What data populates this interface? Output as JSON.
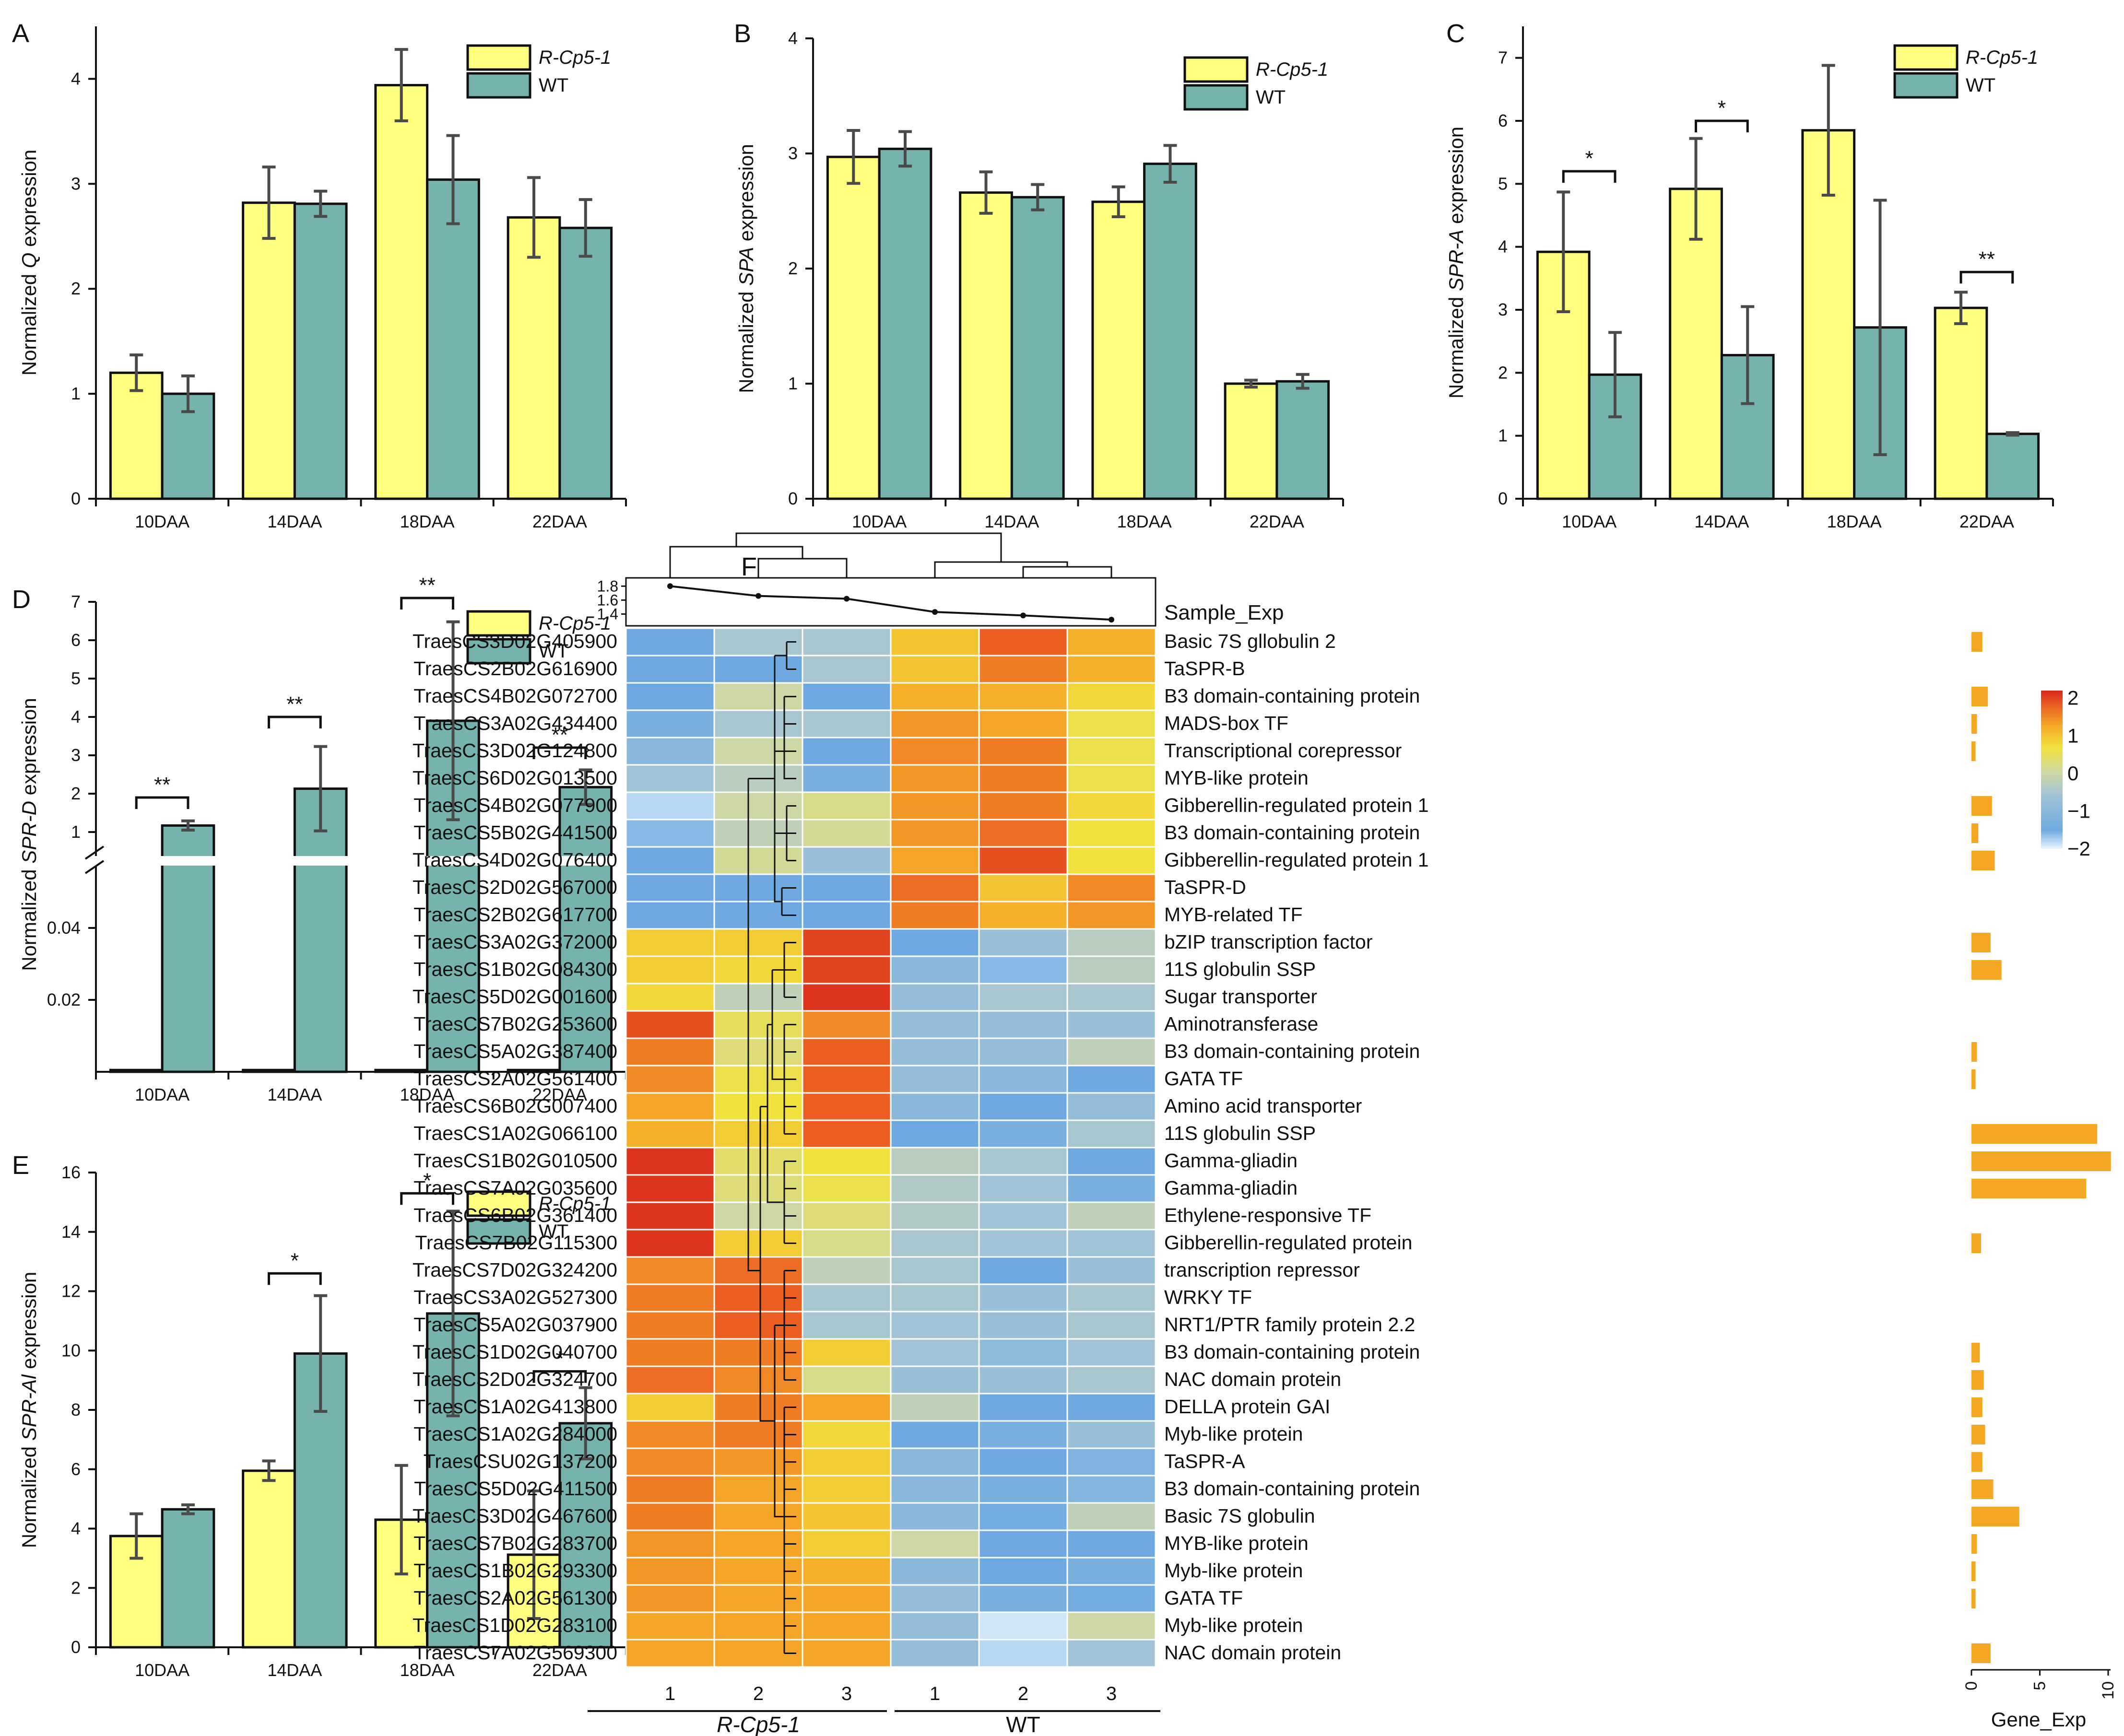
{
  "colors": {
    "rcp": "#ffff80",
    "wt": "#76b2ae",
    "bar_gene": "#f5a623",
    "ink": "#111111",
    "err": "#4a4a4a"
  },
  "chart_data": [
    {
      "type": "bar",
      "panel": "A",
      "title": "",
      "categories": [
        "10DAA",
        "14DAA",
        "18DAA",
        "22DAA"
      ],
      "series": [
        {
          "name": "R-Cp5-1",
          "values": [
            1.2,
            2.82,
            3.94,
            2.68
          ],
          "errors": [
            0.17,
            0.34,
            0.34,
            0.38
          ]
        },
        {
          "name": "WT",
          "values": [
            1.0,
            2.81,
            3.04,
            2.58
          ],
          "errors": [
            0.17,
            0.12,
            0.42,
            0.27
          ]
        }
      ],
      "ylabel_pre": "Normalized ",
      "ylabel_it": "Q",
      "ylabel_post": " expression",
      "ylim": [
        0,
        4.5
      ],
      "yticks": [
        "0",
        "1",
        "2",
        "3",
        "4"
      ],
      "legend": "top-right",
      "sig": []
    },
    {
      "type": "bar",
      "panel": "B",
      "title": "",
      "categories": [
        "10DAA",
        "14DAA",
        "18DAA",
        "22DAA"
      ],
      "series": [
        {
          "name": "R-Cp5-1",
          "values": [
            2.97,
            2.66,
            2.58,
            1.0
          ],
          "errors": [
            0.23,
            0.18,
            0.13,
            0.03
          ]
        },
        {
          "name": "WT",
          "values": [
            3.04,
            2.62,
            2.91,
            1.02
          ],
          "errors": [
            0.15,
            0.11,
            0.16,
            0.06
          ]
        }
      ],
      "ylabel_pre": "Normalized ",
      "ylabel_it": "SPA",
      "ylabel_post": " expression",
      "ylim": [
        0,
        4
      ],
      "yticks": [
        "0",
        "1",
        "2",
        "3",
        "4"
      ],
      "legend": "top-right",
      "sig": []
    },
    {
      "type": "bar",
      "panel": "C",
      "title": "",
      "categories": [
        "10DAA",
        "14DAA",
        "18DAA",
        "22DAA"
      ],
      "series": [
        {
          "name": "R-Cp5-1",
          "values": [
            3.92,
            4.92,
            5.85,
            3.03
          ],
          "errors": [
            0.95,
            0.8,
            1.03,
            0.25
          ]
        },
        {
          "name": "WT",
          "values": [
            1.97,
            2.28,
            2.72,
            1.03
          ],
          "errors": [
            0.67,
            0.77,
            2.02,
            0.02
          ]
        }
      ],
      "ylabel_pre": "Normalized ",
      "ylabel_it": "SPR-A",
      "ylabel_post": " expression",
      "ylim": [
        0,
        7.5
      ],
      "yticks": [
        "0",
        "1",
        "2",
        "3",
        "4",
        "5",
        "6",
        "7"
      ],
      "legend": "top-right",
      "sig": [
        {
          "group": 0,
          "label": "*",
          "y": 5.2
        },
        {
          "group": 1,
          "label": "*",
          "y": 6.0
        },
        {
          "group": 3,
          "label": "**",
          "y": 3.6
        }
      ]
    },
    {
      "type": "bar",
      "panel": "D",
      "title": "",
      "broken_axis": true,
      "categories": [
        "10DAA",
        "14DAA",
        "18DAA",
        "22DAA"
      ],
      "series": [
        {
          "name": "R-Cp5-1",
          "values": [
            0.0005,
            0.0005,
            0.0005,
            0.0005
          ],
          "errors": [
            0,
            0,
            0,
            0
          ]
        },
        {
          "name": "WT",
          "values": [
            1.17,
            2.13,
            3.9,
            2.17
          ],
          "errors": [
            0.12,
            1.1,
            2.58,
            0.45
          ]
        }
      ],
      "ylabel_pre": "Normalized ",
      "ylabel_it": "SPR-D",
      "ylabel_post": " expression",
      "lower_ylim": [
        0,
        0.05
      ],
      "lower_yticks": [
        "0.02",
        "0.04"
      ],
      "upper_ylim": [
        1,
        7
      ],
      "upper_yticks": [
        "1",
        "2",
        "3",
        "4",
        "5",
        "6",
        "7"
      ],
      "legend": "top-right",
      "sig": [
        {
          "group": 0,
          "label": "**",
          "y": 1.9
        },
        {
          "group": 1,
          "label": "**",
          "y": 4.0
        },
        {
          "group": 2,
          "label": "**",
          "y": 7.1
        },
        {
          "group": 3,
          "label": "**",
          "y": 3.2
        }
      ]
    },
    {
      "type": "bar",
      "panel": "E",
      "title": "",
      "categories": [
        "10DAA",
        "14DAA",
        "18DAA",
        "22DAA"
      ],
      "series": [
        {
          "name": "R-Cp5-1",
          "values": [
            3.75,
            5.95,
            4.3,
            3.12
          ],
          "errors": [
            0.75,
            0.33,
            1.83,
            2.15
          ]
        },
        {
          "name": "WT",
          "values": [
            4.65,
            9.9,
            11.25,
            7.55
          ],
          "errors": [
            0.15,
            1.95,
            3.45,
            1.2
          ]
        }
      ],
      "ylabel_pre": "Normalized ",
      "ylabel_it": "SPR-Al",
      "ylabel_post": " expression",
      "ylim": [
        0,
        16
      ],
      "yticks": [
        "0",
        "2",
        "4",
        "6",
        "8",
        "10",
        "12",
        "14",
        "16"
      ],
      "legend": "top-right",
      "sig": [
        {
          "group": 1,
          "label": "*",
          "y": 12.6
        },
        {
          "group": 2,
          "label": "*",
          "y": 15.3
        },
        {
          "group": 3,
          "label": "*",
          "y": 9.3
        }
      ]
    },
    {
      "type": "heatmap",
      "panel": "F",
      "columns": [
        "1",
        "2",
        "3",
        "1",
        "2",
        "3"
      ],
      "groups": [
        {
          "label": "R-Cp5-1",
          "italic": true
        },
        {
          "label": "WT",
          "italic": false
        }
      ],
      "sample_exp": {
        "label": "Sample_Exp",
        "ticks": [
          "1.8",
          "1.6",
          "1.4"
        ],
        "values": [
          1.8,
          1.66,
          1.62,
          1.43,
          1.38,
          1.32
        ]
      },
      "gene_exp": {
        "label": "Gene_Exp",
        "ticks": [
          "0",
          "5",
          "10"
        ]
      },
      "colorbar": {
        "ticks": [
          "2",
          "1",
          "0",
          "−1",
          "−2"
        ]
      },
      "rows": [
        {
          "id": "TraesCS3D02G405900",
          "name": "Basic 7S gllobulin 2",
          "v": [
            -1.5,
            -0.5,
            -0.5,
            1.0,
            1.8,
            1.2
          ],
          "bar": 0.8
        },
        {
          "id": "TraesCS2B02G616900",
          "name": "TaSPR-B",
          "v": [
            -1.5,
            -1.5,
            -0.5,
            1.0,
            1.6,
            1.2
          ],
          "bar": 0
        },
        {
          "id": "TraesCS4B02G072700",
          "name": "B3 domain-containing protein",
          "v": [
            -1.5,
            0,
            -1.5,
            1.2,
            1.2,
            0.8
          ],
          "bar": 1.2
        },
        {
          "id": "TraesCS3A02G434400",
          "name": "MADS-box TF",
          "v": [
            -1.3,
            -0.5,
            -0.5,
            1.4,
            1.3,
            0.6
          ],
          "bar": 0.4
        },
        {
          "id": "TraesCS3D02G124800",
          "name": "Transcriptional corepressor",
          "v": [
            -1.0,
            0,
            -1.5,
            1.5,
            1.6,
            0.6
          ],
          "bar": 0.3
        },
        {
          "id": "TraesCS6D02G013500",
          "name": "MYB-like protein",
          "v": [
            -0.6,
            -0.3,
            -1.3,
            1.4,
            1.6,
            0.6
          ],
          "bar": 0
        },
        {
          "id": "TraesCS4B02G077900",
          "name": "Gibberellin-regulated protein 1",
          "v": [
            -1.8,
            0,
            0.2,
            1.4,
            1.6,
            0.8
          ],
          "bar": 1.5
        },
        {
          "id": "TraesCS5B02G441500",
          "name": "B3 domain-containing protein",
          "v": [
            -1.6,
            -0.2,
            0.1,
            1.4,
            1.7,
            0.7
          ],
          "bar": 0.5
        },
        {
          "id": "TraesCS4D02G076400",
          "name": "Gibberellin-regulated protein 1",
          "v": [
            -1.5,
            0.1,
            -0.7,
            1.3,
            1.9,
            0.7
          ],
          "bar": 1.7
        },
        {
          "id": "TraesCS2D02G567000",
          "name": "TaSPR-D",
          "v": [
            -1.5,
            -1.5,
            -1.5,
            1.7,
            1.0,
            1.5
          ],
          "bar": 0
        },
        {
          "id": "TraesCS2B02G617700",
          "name": "MYB-related TF",
          "v": [
            -1.5,
            -1.5,
            -1.5,
            1.6,
            1.2,
            1.4
          ],
          "bar": 0
        },
        {
          "id": "TraesCS3A02G372000",
          "name": "bZIP transcription factor",
          "v": [
            0.9,
            0.9,
            2.0,
            -1.5,
            -0.7,
            -0.3
          ],
          "bar": 1.4
        },
        {
          "id": "TraesCS1B02G084300",
          "name": "11S globulin SSP",
          "v": [
            0.9,
            0.8,
            2.0,
            -1.0,
            -1.6,
            -0.3
          ],
          "bar": 2.2
        },
        {
          "id": "TraesCS5D02G001600",
          "name": "Sugar transporter",
          "v": [
            0.8,
            -0.2,
            2.1,
            -0.8,
            -0.5,
            -0.5
          ],
          "bar": 0
        },
        {
          "id": "TraesCS7B02G253600",
          "name": "Aminotransferase",
          "v": [
            1.9,
            0.5,
            1.5,
            -0.8,
            -0.8,
            -0.7
          ],
          "bar": 0
        },
        {
          "id": "TraesCS5A02G387400",
          "name": "B3 domain-containing protein",
          "v": [
            1.6,
            0.3,
            1.8,
            -0.8,
            -0.8,
            -0.2
          ],
          "bar": 0.4
        },
        {
          "id": "TraesCS2A02G561400",
          "name": "GATA TF",
          "v": [
            1.5,
            0.6,
            1.8,
            -0.8,
            -1.0,
            -1.5
          ],
          "bar": 0.3
        },
        {
          "id": "TraesCS6B02G007400",
          "name": "Amino acid transporter",
          "v": [
            1.3,
            0.7,
            1.8,
            -1.0,
            -1.5,
            -0.8
          ],
          "bar": 0
        },
        {
          "id": "TraesCS1A02G066100",
          "name": "11S globulin SSP",
          "v": [
            1.2,
            0.9,
            1.8,
            -1.5,
            -1.3,
            -0.5
          ],
          "bar": 9.2
        },
        {
          "id": "TraesCS1B02G010500",
          "name": "Gamma-gliadin",
          "v": [
            2.1,
            0.4,
            0.7,
            -0.3,
            -0.5,
            -1.5
          ],
          "bar": 10.2
        },
        {
          "id": "TraesCS7A02G035600",
          "name": "Gamma-gliadin",
          "v": [
            2.1,
            0.3,
            0.6,
            -0.4,
            -0.6,
            -1.3
          ],
          "bar": 8.4
        },
        {
          "id": "TraesCS6B02G361400",
          "name": "Ethylene-responsive TF",
          "v": [
            2.1,
            0,
            0.3,
            -0.4,
            -0.6,
            -0.2
          ],
          "bar": 0
        },
        {
          "id": "TraesCS7B02G115300",
          "name": "Gibberellin-regulated protein",
          "v": [
            2.1,
            0.9,
            0.2,
            -0.5,
            -0.6,
            -0.6
          ],
          "bar": 0.7
        },
        {
          "id": "TraesCS7D02G324200",
          "name": "transcription repressor",
          "v": [
            1.5,
            1.7,
            -0.2,
            -0.5,
            -1.5,
            -0.7
          ],
          "bar": 0
        },
        {
          "id": "TraesCS3A02G527300",
          "name": "WRKY TF",
          "v": [
            1.6,
            1.8,
            -0.5,
            -0.5,
            -0.7,
            -0.5
          ],
          "bar": 0
        },
        {
          "id": "TraesCS5A02G037900",
          "name": "NRT1/PTR family protein 2.2",
          "v": [
            1.6,
            1.8,
            -0.5,
            -0.6,
            -0.7,
            -0.5
          ],
          "bar": 0
        },
        {
          "id": "TraesCS1D02G040700",
          "name": "B3 domain-containing protein",
          "v": [
            1.6,
            1.6,
            0.9,
            -0.6,
            -0.9,
            -0.6
          ],
          "bar": 0.6
        },
        {
          "id": "TraesCS2D02G324700",
          "name": "NAC domain protein",
          "v": [
            1.7,
            1.5,
            0.2,
            -0.7,
            -0.7,
            -0.5
          ],
          "bar": 0.9
        },
        {
          "id": "TraesCS1A02G413800",
          "name": "DELLA protein GAI",
          "v": [
            0.9,
            1.6,
            1.3,
            -0.2,
            -1.5,
            -1.5
          ],
          "bar": 0.8
        },
        {
          "id": "TraesCS1A02G284000",
          "name": "Myb-like protein",
          "v": [
            1.5,
            1.6,
            0.8,
            -1.5,
            -1.3,
            -0.7
          ],
          "bar": 1.0
        },
        {
          "id": "TraesCSU02G137200",
          "name": "TaSPR-A",
          "v": [
            1.5,
            1.4,
            0.9,
            -1.0,
            -1.5,
            -1.2
          ],
          "bar": 0.8
        },
        {
          "id": "TraesCS5D02G411500",
          "name": "B3 domain-containing protein",
          "v": [
            1.6,
            1.3,
            0.9,
            -1.0,
            -1.3,
            -1.1
          ],
          "bar": 1.6
        },
        {
          "id": "TraesCS3D02G467600",
          "name": "Basic 7S globulin",
          "v": [
            1.6,
            1.3,
            1.0,
            -1.0,
            -1.4,
            -0.2
          ],
          "bar": 3.5
        },
        {
          "id": "TraesCS7B02G283700",
          "name": "MYB-like protein",
          "v": [
            1.4,
            1.3,
            0.9,
            0,
            -1.5,
            -1.5
          ],
          "bar": 0.4
        },
        {
          "id": "TraesCS1B02G293300",
          "name": "Myb-like protein",
          "v": [
            1.4,
            1.3,
            1.2,
            -1.0,
            -1.5,
            -1.3
          ],
          "bar": 0.3
        },
        {
          "id": "TraesCS2A02G561300",
          "name": "GATA TF",
          "v": [
            1.4,
            1.3,
            1.3,
            -0.8,
            -1.3,
            -1.4
          ],
          "bar": 0.3
        },
        {
          "id": "TraesCS1D02G283100",
          "name": "Myb-like protein",
          "v": [
            1.3,
            1.3,
            1.3,
            -0.8,
            -1.9,
            0
          ],
          "bar": 0
        },
        {
          "id": "TraesCS7A02G569300",
          "name": "NAC domain protein",
          "v": [
            1.3,
            1.3,
            1.3,
            -0.8,
            -1.8,
            -0.6
          ],
          "bar": 1.4
        }
      ]
    }
  ]
}
